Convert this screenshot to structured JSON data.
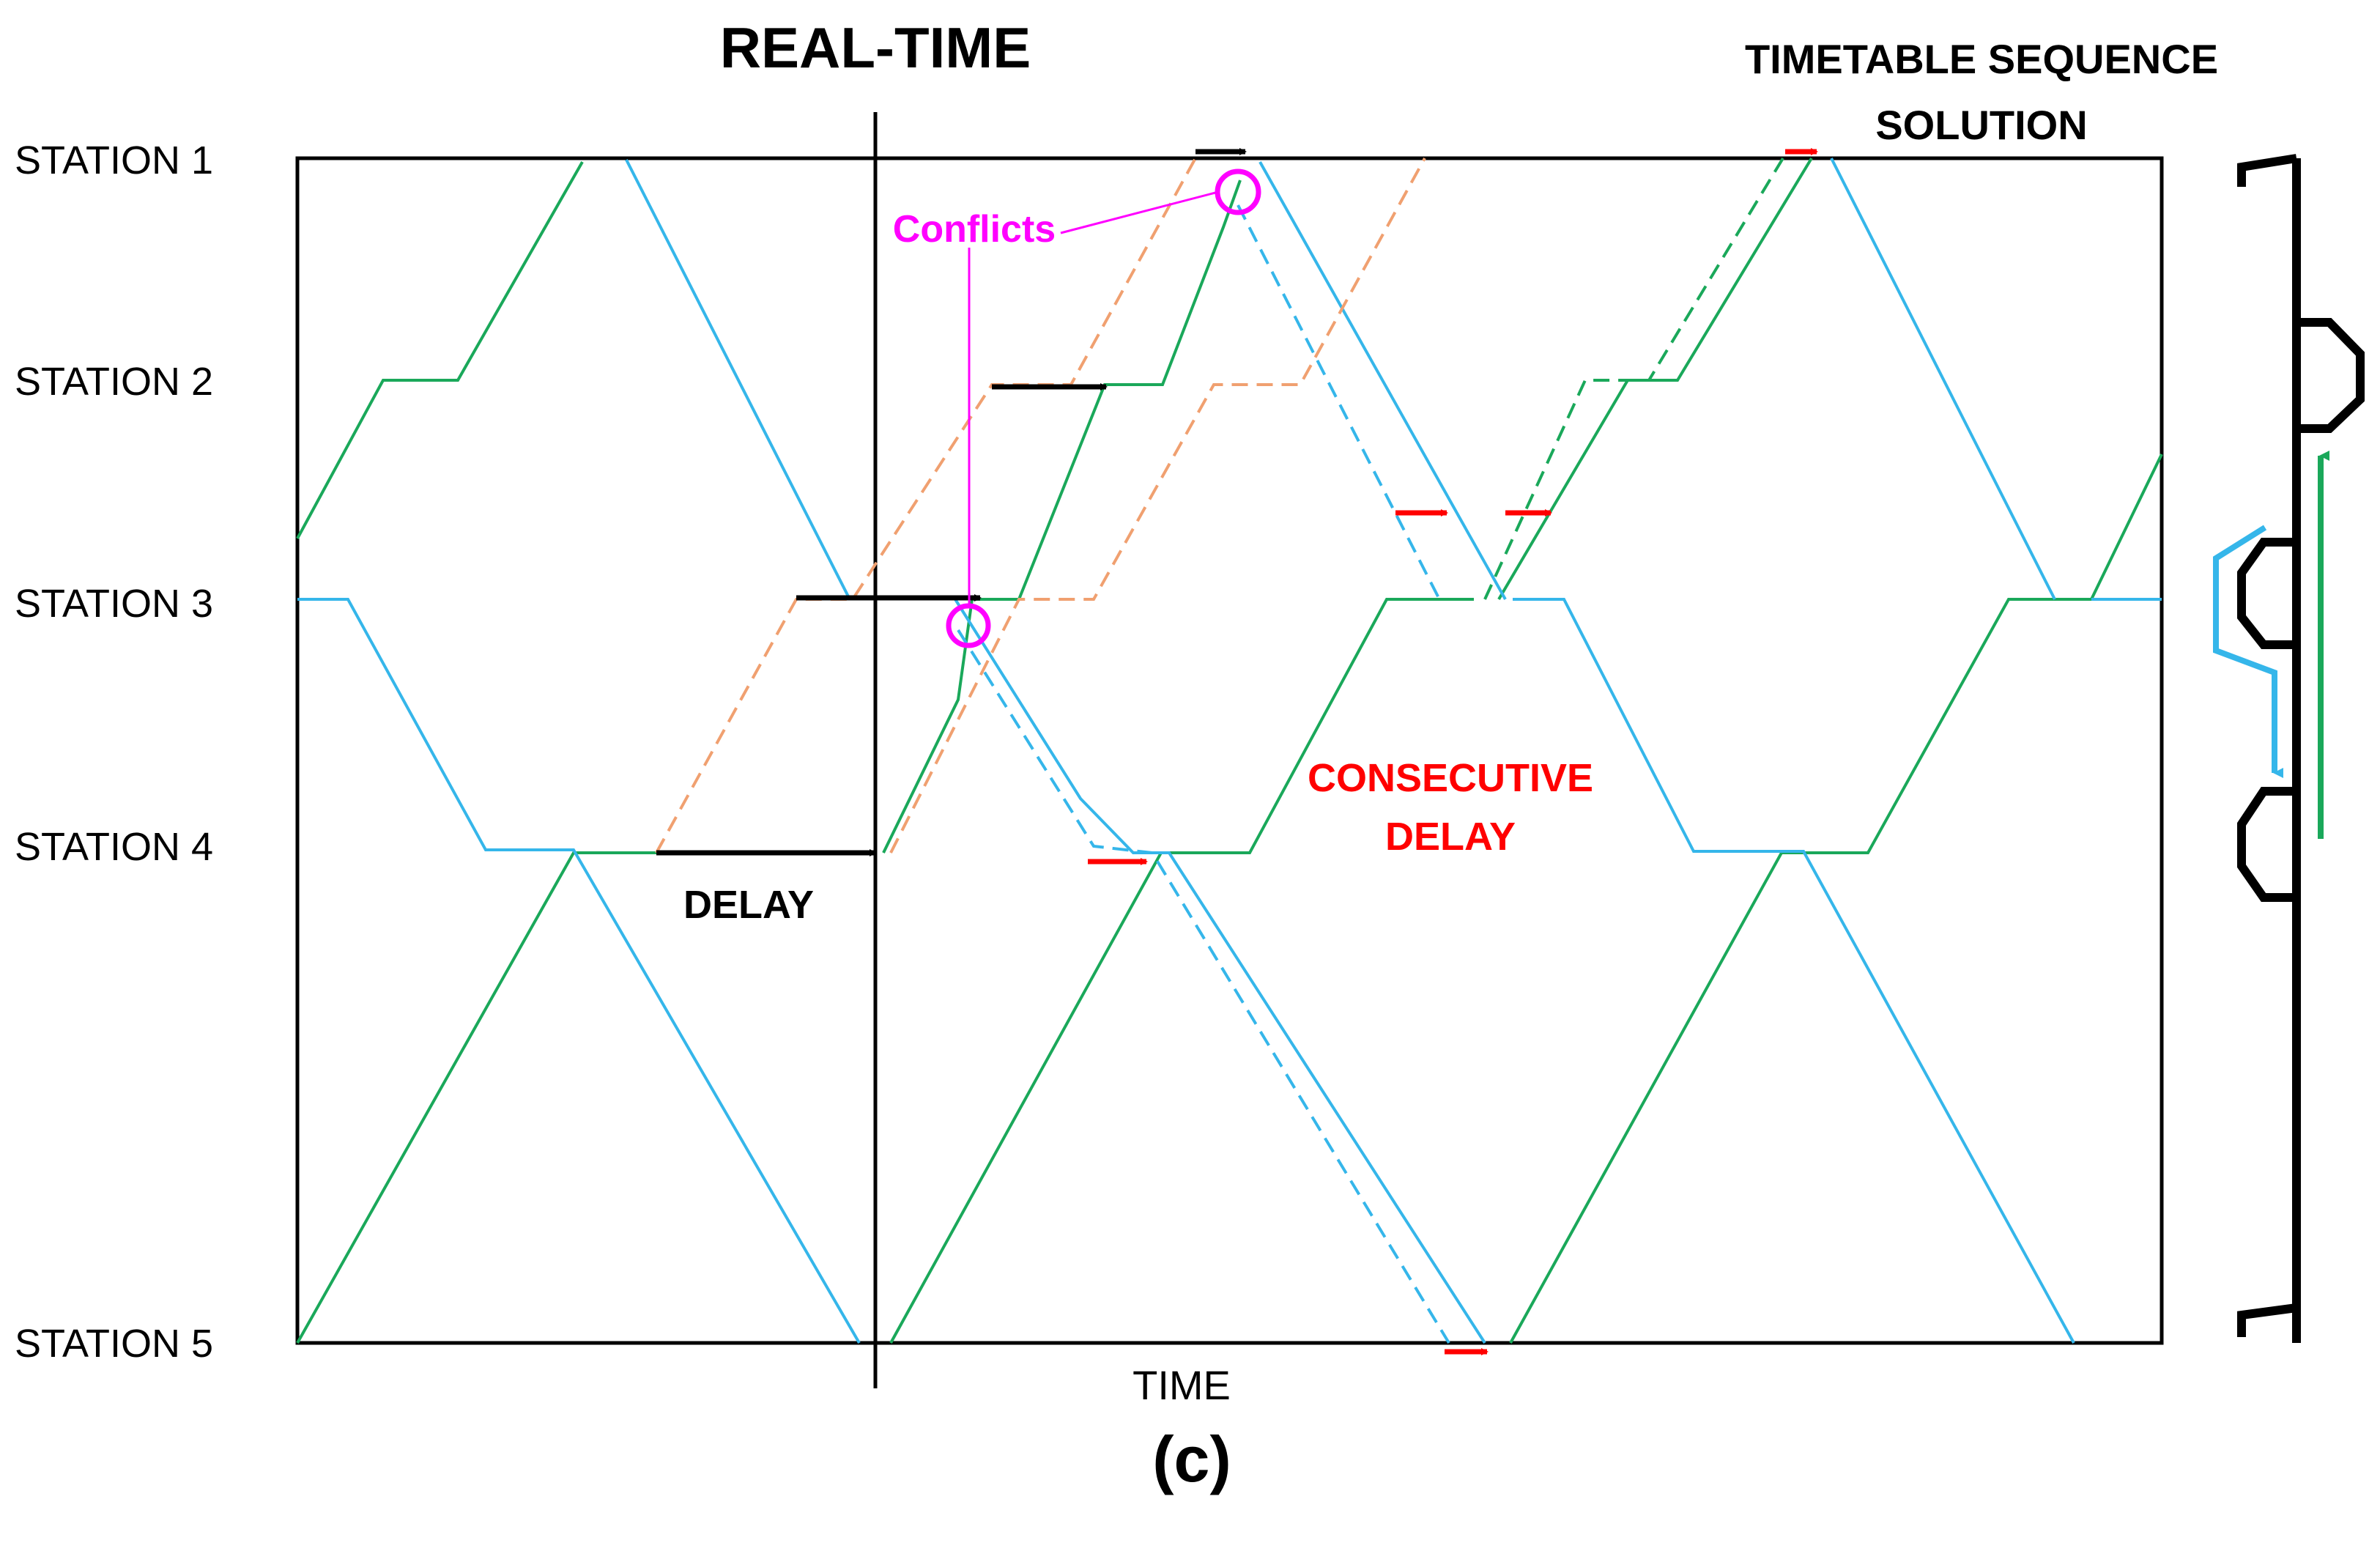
{
  "title": "REAL-TIME",
  "top_right_label_line1": "TIMETABLE SEQUENCE",
  "top_right_label_line2": "SOLUTION",
  "stations": [
    "STATION 1",
    "STATION 2",
    "STATION 3",
    "STATION 4",
    "STATION 5"
  ],
  "x_axis_label": "TIME",
  "conflicts_label": "Conflicts",
  "delay_label": "DELAY",
  "consecutive_delay_line1": "CONSECUTIVE",
  "consecutive_delay_line2": "DELAY",
  "caption": "(c)",
  "colors": {
    "green_train": "#1aa85a",
    "blue_train": "#35b6ea",
    "orange_train": "#f0a070",
    "conflict": "#ff00ff",
    "consecutive_delay": "#ff0000",
    "delay_arrow": "#000000",
    "text": "#000000"
  }
}
